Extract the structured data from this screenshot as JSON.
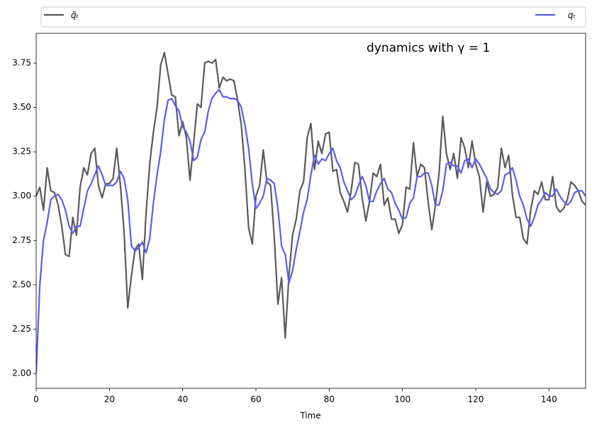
{
  "chart_data": {
    "type": "line",
    "annotation": "dynamics with γ = 1",
    "x_label": "Time",
    "x": [
      0,
      1,
      2,
      3,
      4,
      5,
      6,
      7,
      8,
      9,
      10,
      11,
      12,
      13,
      14,
      15,
      16,
      17,
      18,
      19,
      20,
      21,
      22,
      23,
      24,
      25,
      26,
      27,
      28,
      29,
      30,
      31,
      32,
      33,
      34,
      35,
      36,
      37,
      38,
      39,
      40,
      41,
      42,
      43,
      44,
      45,
      46,
      47,
      48,
      49,
      50,
      51,
      52,
      53,
      54,
      55,
      56,
      57,
      58,
      59,
      60,
      61,
      62,
      63,
      64,
      65,
      66,
      67,
      68,
      69,
      70,
      71,
      72,
      73,
      74,
      75,
      76,
      77,
      78,
      79,
      80,
      81,
      82,
      83,
      84,
      85,
      86,
      87,
      88,
      89,
      90,
      91,
      92,
      93,
      94,
      95,
      96,
      97,
      98,
      99,
      100,
      101,
      102,
      103,
      104,
      105,
      106,
      107,
      108,
      109,
      110,
      111,
      112,
      113,
      114,
      115,
      116,
      117,
      118,
      119,
      120,
      121,
      122,
      123,
      124,
      125,
      126,
      127,
      128,
      129,
      130,
      131,
      132,
      133,
      134,
      135,
      136,
      137,
      138,
      139,
      140,
      141,
      142,
      143,
      144,
      145,
      146,
      147,
      148,
      149,
      150
    ],
    "series": [
      {
        "name": "q̃ₜ",
        "color": "#5a5a5a",
        "values": [
          3.0,
          3.05,
          2.92,
          3.16,
          3.03,
          3.02,
          2.95,
          2.83,
          2.67,
          2.66,
          2.88,
          2.78,
          3.05,
          3.16,
          3.12,
          3.24,
          3.27,
          3.06,
          2.99,
          3.07,
          3.07,
          3.1,
          3.27,
          3.06,
          2.8,
          2.37,
          2.55,
          2.7,
          2.73,
          2.53,
          2.9,
          3.18,
          3.36,
          3.5,
          3.74,
          3.81,
          3.69,
          3.57,
          3.56,
          3.34,
          3.42,
          3.33,
          3.09,
          3.3,
          3.52,
          3.5,
          3.75,
          3.76,
          3.75,
          3.77,
          3.61,
          3.67,
          3.65,
          3.66,
          3.65,
          3.54,
          3.4,
          3.15,
          2.82,
          2.73,
          3.0,
          3.06,
          3.26,
          3.08,
          3.06,
          2.77,
          2.39,
          2.54,
          2.2,
          2.55,
          2.78,
          2.87,
          3.03,
          3.08,
          3.33,
          3.41,
          3.15,
          3.31,
          3.24,
          3.35,
          3.36,
          3.14,
          3.15,
          3.02,
          2.97,
          2.91,
          3.03,
          3.19,
          3.18,
          2.99,
          2.86,
          2.97,
          3.13,
          3.11,
          3.18,
          2.95,
          2.99,
          2.87,
          2.87,
          2.79,
          2.84,
          3.05,
          3.04,
          3.3,
          3.11,
          3.18,
          3.16,
          2.97,
          2.81,
          2.95,
          3.13,
          3.45,
          3.24,
          3.15,
          3.24,
          3.1,
          3.33,
          3.27,
          3.16,
          3.31,
          3.18,
          3.11,
          2.91,
          3.08,
          3.0,
          3.01,
          3.05,
          3.27,
          3.16,
          3.23,
          3.01,
          2.88,
          2.88,
          2.76,
          2.73,
          2.92,
          3.03,
          3.01,
          3.08,
          2.98,
          2.98,
          3.11,
          2.94,
          2.91,
          2.93,
          2.98,
          3.08,
          3.06,
          3.03,
          2.97,
          2.95
        ]
      },
      {
        "name": "qₜ",
        "color": "#5c5cf0",
        "values": [
          2.0,
          2.5,
          2.75,
          2.85,
          2.98,
          3.0,
          3.01,
          2.98,
          2.92,
          2.83,
          2.79,
          2.83,
          2.83,
          2.93,
          3.03,
          3.07,
          3.12,
          3.17,
          3.12,
          3.06,
          3.06,
          3.06,
          3.08,
          3.14,
          3.1,
          2.98,
          2.72,
          2.69,
          2.71,
          2.74,
          2.68,
          2.76,
          2.96,
          3.12,
          3.25,
          3.43,
          3.54,
          3.55,
          3.51,
          3.48,
          3.39,
          3.36,
          3.31,
          3.2,
          3.22,
          3.32,
          3.36,
          3.48,
          3.55,
          3.58,
          3.6,
          3.56,
          3.56,
          3.55,
          3.55,
          3.54,
          3.5,
          3.4,
          3.27,
          3.07,
          2.93,
          2.96,
          3.0,
          3.1,
          3.09,
          3.07,
          2.93,
          2.72,
          2.67,
          2.51,
          2.58,
          2.7,
          2.8,
          2.91,
          2.98,
          3.12,
          3.23,
          3.18,
          3.21,
          3.2,
          3.24,
          3.27,
          3.2,
          3.16,
          3.08,
          3.03,
          2.98,
          3.0,
          3.06,
          3.11,
          3.06,
          2.97,
          2.97,
          3.03,
          3.07,
          3.1,
          3.04,
          3.02,
          2.96,
          2.92,
          2.87,
          2.88,
          2.96,
          2.99,
          3.11,
          3.11,
          3.13,
          3.13,
          3.06,
          2.95,
          2.95,
          3.03,
          3.18,
          3.19,
          3.17,
          3.17,
          3.13,
          3.2,
          3.21,
          3.16,
          3.21,
          3.18,
          3.14,
          3.1,
          3.04,
          3.02,
          3.01,
          3.03,
          3.12,
          3.13,
          3.16,
          3.09,
          3.0,
          2.95,
          2.87,
          2.83,
          2.88,
          2.95,
          2.98,
          3.02,
          3.0,
          3.0,
          3.04,
          3.0,
          2.97,
          2.95,
          2.97,
          3.02,
          3.03,
          3.03,
          3.0
        ]
      }
    ],
    "xlim": [
      0,
      150
    ],
    "xticks": [
      0,
      20,
      40,
      60,
      80,
      100,
      120,
      140
    ],
    "ylim": [
      1.916,
      3.918
    ],
    "yticks": [
      {
        "value": 2,
        "label": "2.00"
      },
      {
        "value": 2.25,
        "label": "2.25"
      },
      {
        "value": 2.5,
        "label": "2.50"
      },
      {
        "value": 2.75,
        "label": "2.75"
      },
      {
        "value": 3,
        "label": "3.00"
      },
      {
        "value": 3.25,
        "label": "3.25"
      },
      {
        "value": 3.5,
        "label": "3.50"
      },
      {
        "value": 3.75,
        "label": "3.75"
      }
    ],
    "grid": false
  }
}
